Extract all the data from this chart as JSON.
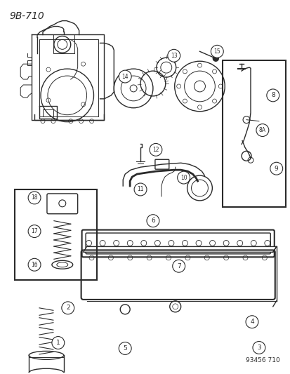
{
  "title": "9B-710",
  "watermark": "93456 710",
  "bg_color": "#ffffff",
  "line_color": "#2a2a2a",
  "fig_width": 4.14,
  "fig_height": 5.33,
  "dpi": 100
}
